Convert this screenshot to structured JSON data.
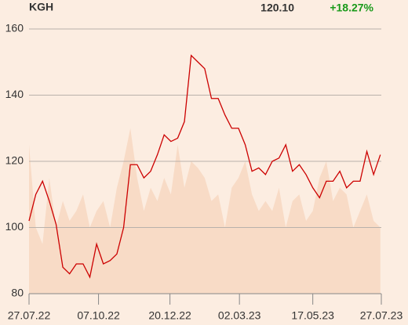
{
  "header": {
    "symbol": "KGH",
    "price": "120.10",
    "change": "+18.27%",
    "change_color": "#1a9a1a"
  },
  "chart_data": {
    "type": "line",
    "x": [
      "2022-07-27",
      "2022-08-03",
      "2022-08-10",
      "2022-08-17",
      "2022-08-24",
      "2022-08-31",
      "2022-09-07",
      "2022-09-14",
      "2022-09-21",
      "2022-09-28",
      "2022-10-05",
      "2022-10-12",
      "2022-10-19",
      "2022-10-26",
      "2022-11-02",
      "2022-11-09",
      "2022-11-16",
      "2022-11-23",
      "2022-11-30",
      "2022-12-07",
      "2022-12-14",
      "2022-12-21",
      "2022-12-28",
      "2023-01-04",
      "2023-01-11",
      "2023-01-18",
      "2023-01-25",
      "2023-02-01",
      "2023-02-08",
      "2023-02-15",
      "2023-02-22",
      "2023-03-01",
      "2023-03-08",
      "2023-03-15",
      "2023-03-22",
      "2023-03-29",
      "2023-04-05",
      "2023-04-12",
      "2023-04-19",
      "2023-04-26",
      "2023-05-03",
      "2023-05-10",
      "2023-05-17",
      "2023-05-24",
      "2023-05-31",
      "2023-06-07",
      "2023-06-14",
      "2023-06-21",
      "2023-06-28",
      "2023-07-05",
      "2023-07-12",
      "2023-07-19",
      "2023-07-26"
    ],
    "series": [
      {
        "name": "volume",
        "color": "#f8dbc6",
        "kind": "area",
        "values": [
          125,
          100,
          95,
          115,
          100,
          108,
          102,
          105,
          110,
          100,
          105,
          108,
          100,
          112,
          120,
          130,
          115,
          105,
          112,
          108,
          115,
          110,
          125,
          112,
          120,
          118,
          115,
          108,
          110,
          100,
          112,
          115,
          120,
          110,
          105,
          108,
          105,
          112,
          100,
          108,
          110,
          102,
          105,
          115,
          120,
          108,
          112,
          110,
          100,
          105,
          110,
          102,
          100
        ]
      },
      {
        "name": "price",
        "color": "#cc0000",
        "kind": "line",
        "values": [
          102,
          110,
          114,
          108,
          101,
          88,
          86,
          89,
          89,
          85,
          95,
          89,
          90,
          92,
          100,
          119,
          119,
          115,
          117,
          122,
          128,
          126,
          127,
          132,
          152,
          150,
          148,
          139,
          139,
          134,
          130,
          130,
          125,
          117,
          118,
          116,
          120,
          121,
          125,
          117,
          119,
          116,
          112,
          109,
          114,
          114,
          117,
          112,
          114,
          114,
          123,
          116,
          122
        ]
      }
    ],
    "xlim": [
      "2022-07-27",
      "2023-07-27"
    ],
    "xticks": [
      {
        "value": "2022-07-27",
        "label": "27.07.22"
      },
      {
        "value": "2022-10-07",
        "label": "07.10.22"
      },
      {
        "value": "2022-12-20",
        "label": "20.12.22"
      },
      {
        "value": "2023-03-02",
        "label": "02.03.23"
      },
      {
        "value": "2023-05-17",
        "label": "17.05.23"
      },
      {
        "value": "2023-07-27",
        "label": "27.07.23"
      }
    ],
    "ylim": [
      80,
      160
    ],
    "yticks": [
      80,
      100,
      120,
      140,
      160
    ],
    "grid": true
  }
}
